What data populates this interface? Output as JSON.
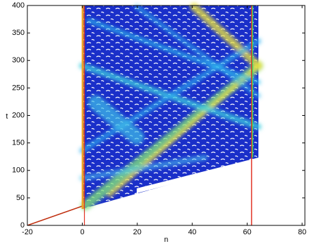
{
  "chart_data": {
    "type": "contour",
    "xlabel": "n",
    "ylabel": "t",
    "xlim": [
      -20,
      81
    ],
    "xticks": [
      -20,
      0,
      20,
      40,
      60,
      80
    ],
    "ylim": [
      0,
      400
    ],
    "yticks": [
      0,
      50,
      100,
      150,
      200,
      250,
      300,
      350,
      400
    ]
  }
}
